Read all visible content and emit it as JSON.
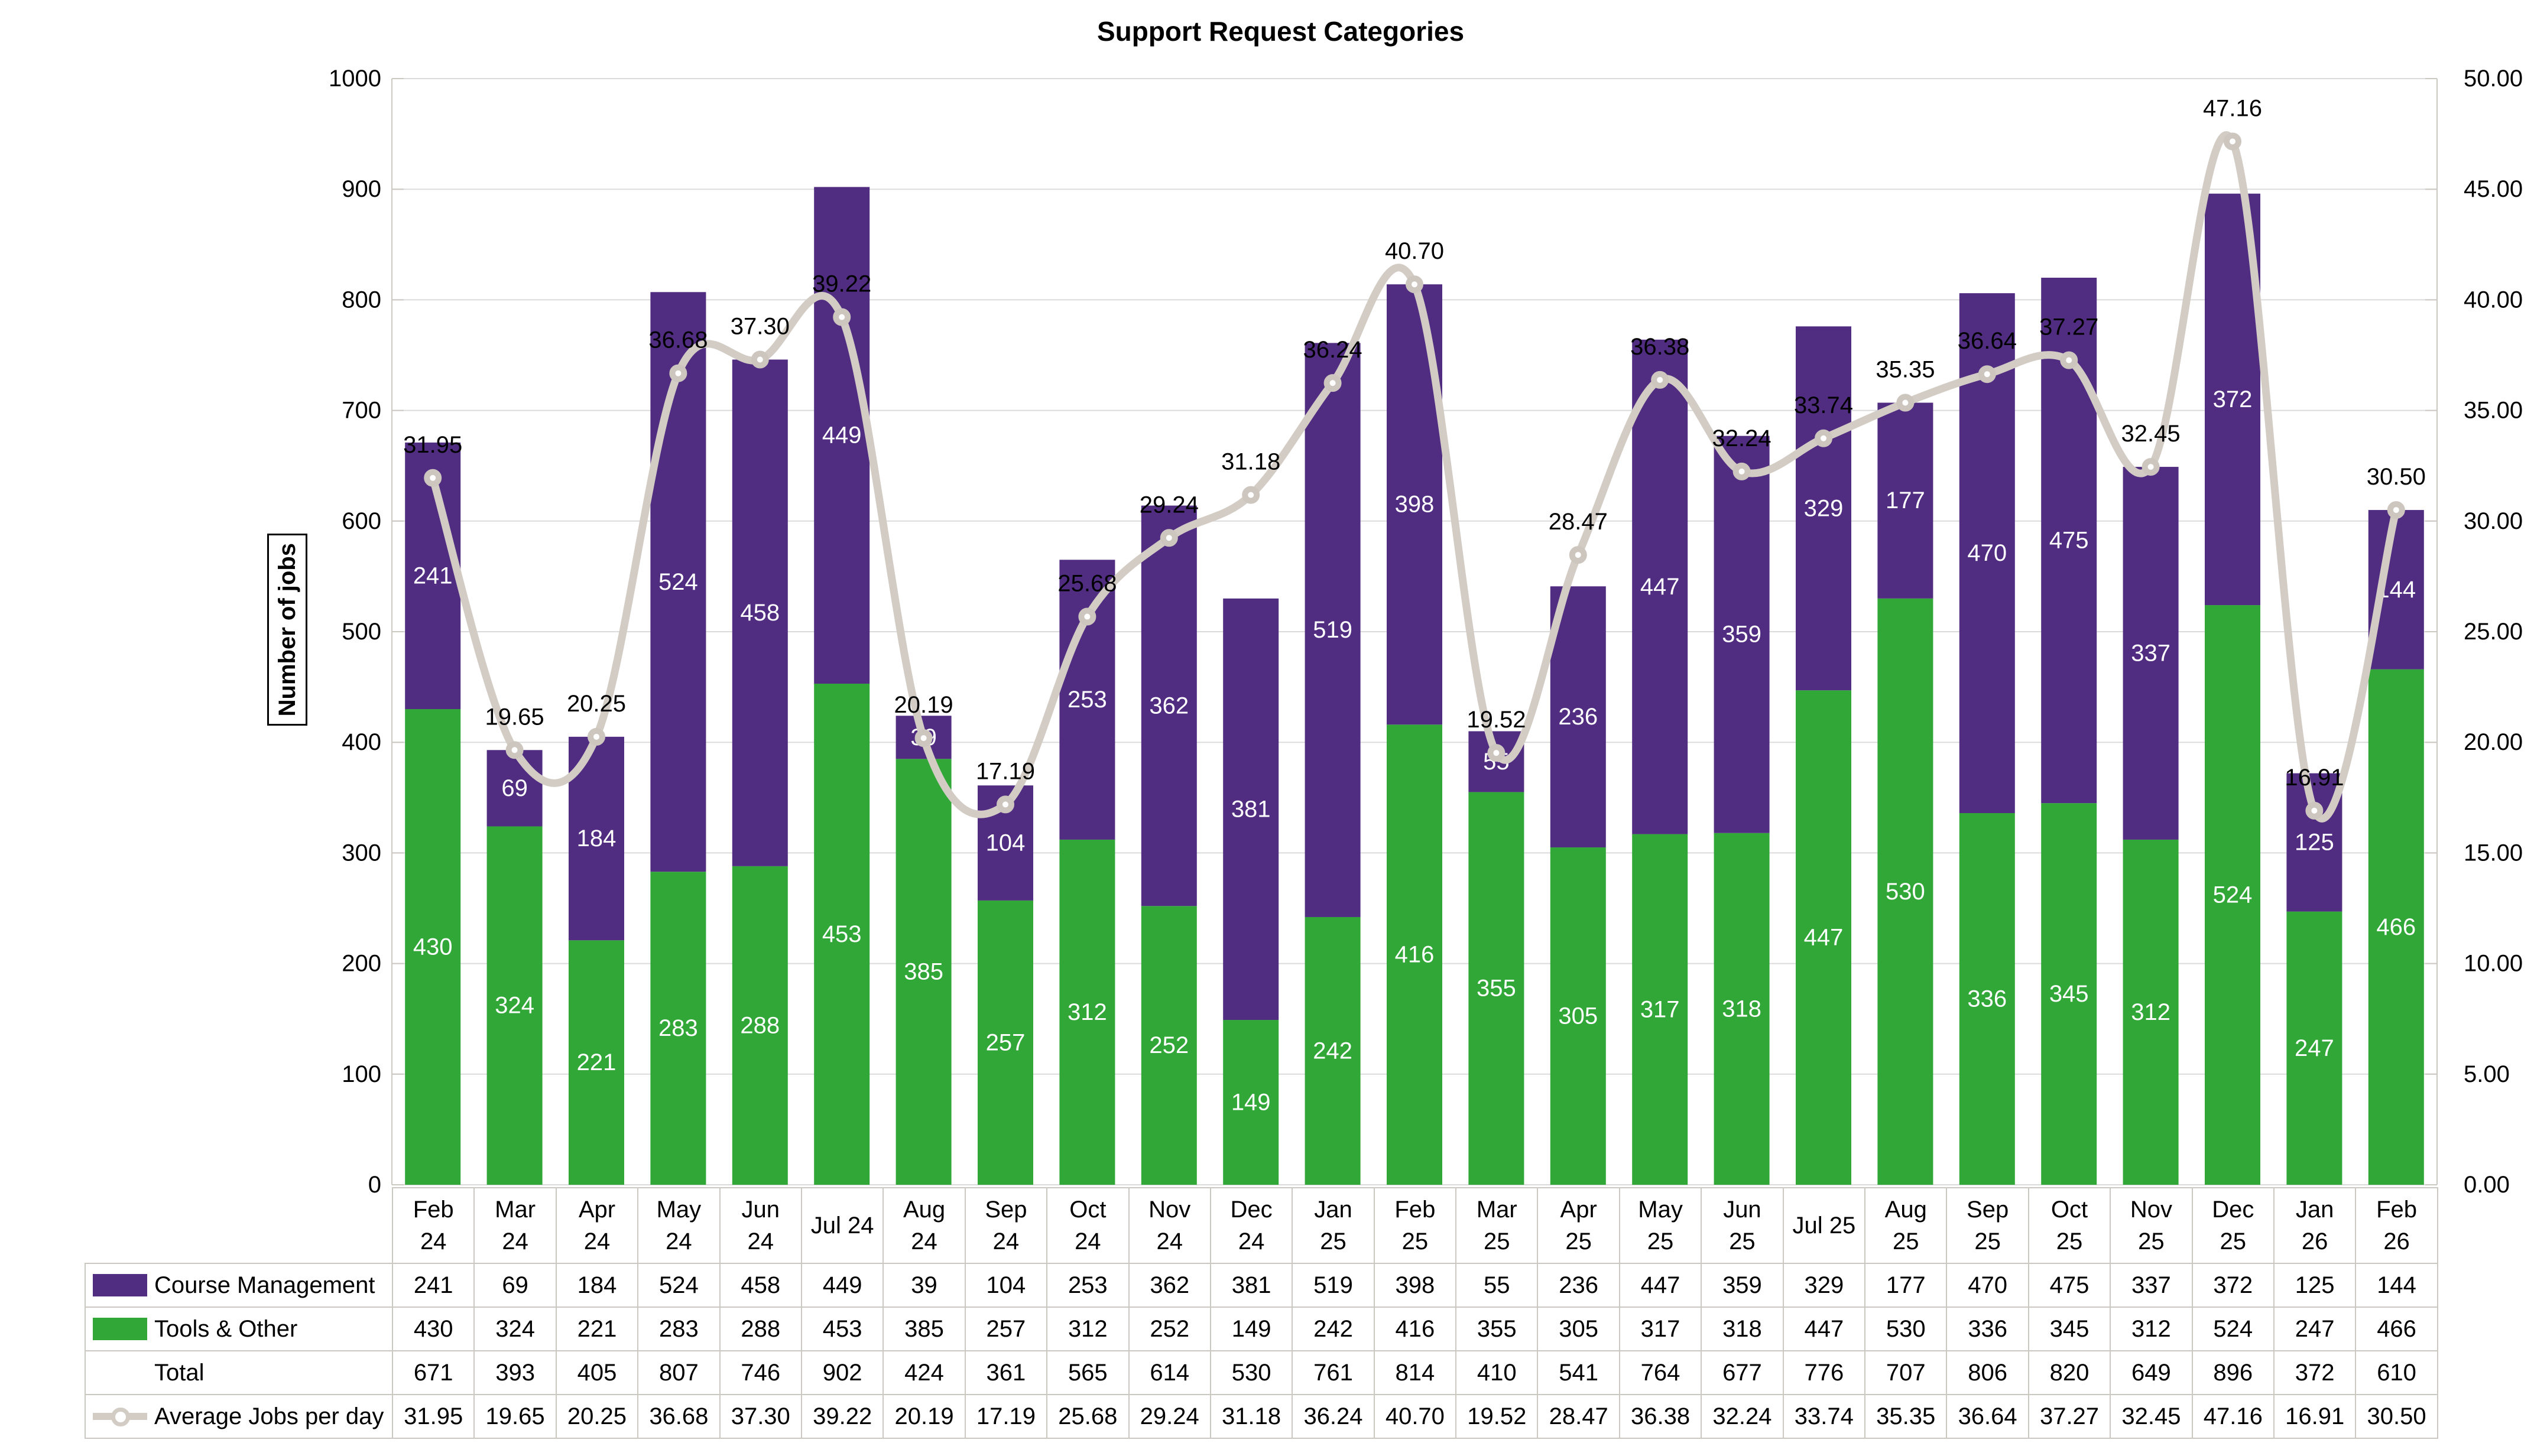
{
  "chart_data": {
    "type": "combo-stacked-bar-line",
    "title": "Support Request Categories",
    "ylabel": "Number of jobs",
    "y_left": {
      "min": 0,
      "max": 1000,
      "step": 100
    },
    "y_right": {
      "min": 0,
      "max": 50,
      "step": 5,
      "format": "2dp"
    },
    "grid": "horizontal",
    "legend_position": "data-table-left-column",
    "categories": [
      "Feb\n24",
      "Mar\n24",
      "Apr\n24",
      "May\n24",
      "Jun\n24",
      "Jul 24",
      "Aug\n24",
      "Sep\n24",
      "Oct\n24",
      "Nov\n24",
      "Dec\n24",
      "Jan\n25",
      "Feb\n25",
      "Mar\n25",
      "Apr\n25",
      "May\n25",
      "Jun\n25",
      "Jul 25",
      "Aug\n25",
      "Sep\n25",
      "Oct\n25",
      "Nov\n25",
      "Dec\n25",
      "Jan\n26",
      "Feb\n26"
    ],
    "series": [
      {
        "name": "Course Management",
        "chart": "bar",
        "stack_order": 2,
        "color": "#512D82",
        "format": "int",
        "values": [
          241,
          69,
          184,
          524,
          458,
          449,
          39,
          104,
          253,
          362,
          381,
          519,
          398,
          55,
          236,
          447,
          359,
          329,
          177,
          470,
          475,
          337,
          372,
          125,
          144
        ]
      },
      {
        "name": "Tools & Other",
        "chart": "bar",
        "stack_order": 1,
        "color": "#30A737",
        "format": "int",
        "values": [
          430,
          324,
          221,
          283,
          288,
          453,
          385,
          257,
          312,
          252,
          149,
          242,
          416,
          355,
          305,
          317,
          318,
          447,
          530,
          336,
          345,
          312,
          524,
          247,
          466
        ]
      },
      {
        "name": "Total",
        "chart": "table-only",
        "color": "",
        "format": "int",
        "values": [
          671,
          393,
          405,
          807,
          746,
          902,
          424,
          361,
          565,
          614,
          530,
          761,
          814,
          410,
          541,
          764,
          677,
          776,
          707,
          806,
          820,
          649,
          896,
          372,
          610
        ]
      },
      {
        "name": "Average Jobs per day",
        "chart": "line",
        "axis": "y2",
        "color": "#D2CCC5",
        "marker": "circle-white",
        "format": "2dp",
        "values": [
          31.95,
          19.65,
          20.25,
          36.68,
          37.3,
          39.22,
          20.19,
          17.19,
          25.68,
          29.24,
          31.18,
          36.24,
          40.7,
          19.52,
          28.47,
          36.38,
          32.24,
          33.74,
          35.35,
          36.64,
          37.27,
          32.45,
          47.16,
          16.91,
          30.5
        ]
      }
    ],
    "colors": {
      "gridline": "#DBDBDB",
      "axis_line": "#CBC7C1",
      "bar_label_text": "#FFFFFF",
      "line_label_text": "#000000",
      "marker_fill": "#FFFFFF",
      "marker_stroke": "#CCC6BF"
    }
  }
}
